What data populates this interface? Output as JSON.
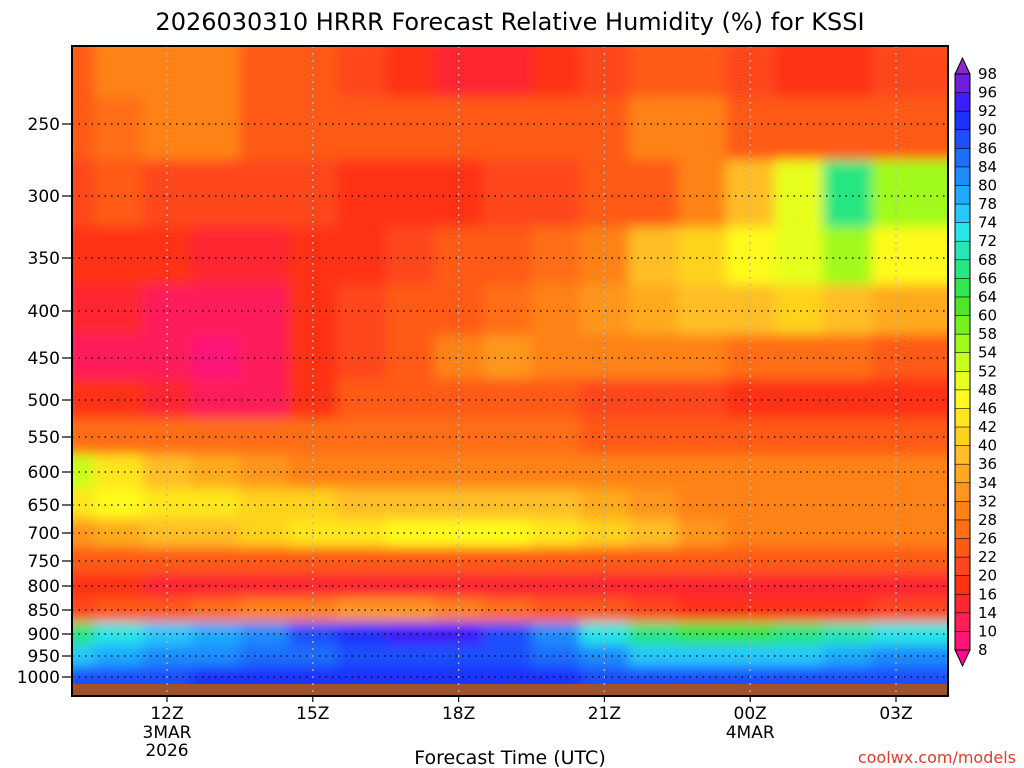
{
  "chart_data": {
    "type": "heatmap",
    "title": "2026030310 HRRR Forecast Relative Humidity (%) for KSSI",
    "xlabel": "Forecast Time (UTC)",
    "ylabel": "",
    "x_ticks": [
      {
        "label": "12Z",
        "sub1": "3MAR",
        "sub2": "2026"
      },
      {
        "label": "15Z",
        "sub1": "",
        "sub2": ""
      },
      {
        "label": "18Z",
        "sub1": "",
        "sub2": ""
      },
      {
        "label": "21Z",
        "sub1": "",
        "sub2": ""
      },
      {
        "label": "00Z",
        "sub1": "4MAR",
        "sub2": ""
      },
      {
        "label": "03Z",
        "sub1": "",
        "sub2": ""
      }
    ],
    "y_ticks": [
      "250",
      "300",
      "350",
      "400",
      "450",
      "500",
      "550",
      "600",
      "650",
      "700",
      "750",
      "800",
      "850",
      "900",
      "950",
      "1000"
    ],
    "y_values": [
      250,
      300,
      350,
      400,
      450,
      500,
      550,
      600,
      650,
      700,
      750,
      800,
      850,
      900,
      950,
      1000
    ],
    "x_hours": [
      10,
      11,
      12,
      13,
      14,
      15,
      16,
      17,
      18,
      19,
      20,
      21,
      22,
      23,
      24,
      25,
      26,
      27
    ],
    "pressure_levels": [
      200,
      250,
      300,
      350,
      400,
      450,
      500,
      550,
      600,
      650,
      700,
      750,
      800,
      850,
      900,
      950,
      1000
    ],
    "rh_grid": [
      [
        24,
        28,
        30,
        28,
        24,
        22,
        20,
        18,
        14,
        14,
        18,
        20,
        22,
        22,
        20,
        18,
        16,
        20
      ],
      [
        24,
        26,
        28,
        28,
        24,
        22,
        22,
        22,
        22,
        22,
        22,
        24,
        30,
        28,
        22,
        22,
        22,
        22
      ],
      [
        20,
        22,
        20,
        20,
        20,
        20,
        18,
        18,
        18,
        20,
        20,
        22,
        24,
        30,
        38,
        50,
        66,
        54
      ],
      [
        18,
        18,
        16,
        14,
        14,
        16,
        18,
        20,
        22,
        24,
        26,
        30,
        36,
        40,
        46,
        50,
        56,
        46
      ],
      [
        14,
        14,
        12,
        10,
        12,
        16,
        20,
        22,
        24,
        26,
        30,
        32,
        34,
        36,
        38,
        40,
        38,
        34
      ],
      [
        12,
        12,
        10,
        8,
        10,
        16,
        20,
        24,
        30,
        32,
        28,
        28,
        30,
        28,
        26,
        26,
        26,
        24
      ],
      [
        18,
        16,
        14,
        12,
        12,
        18,
        22,
        22,
        24,
        24,
        22,
        20,
        20,
        20,
        18,
        18,
        18,
        18
      ],
      [
        26,
        26,
        26,
        26,
        26,
        26,
        26,
        26,
        26,
        26,
        26,
        24,
        24,
        24,
        24,
        24,
        24,
        24
      ],
      [
        52,
        44,
        38,
        34,
        32,
        30,
        28,
        28,
        28,
        28,
        28,
        28,
        28,
        28,
        28,
        28,
        28,
        28
      ],
      [
        44,
        46,
        44,
        42,
        40,
        40,
        38,
        38,
        38,
        38,
        36,
        34,
        32,
        30,
        28,
        28,
        28,
        28
      ],
      [
        32,
        34,
        36,
        38,
        40,
        42,
        44,
        46,
        46,
        46,
        44,
        40,
        36,
        32,
        30,
        30,
        30,
        30
      ],
      [
        22,
        22,
        22,
        22,
        22,
        22,
        22,
        22,
        22,
        22,
        22,
        22,
        22,
        22,
        22,
        22,
        22,
        22
      ],
      [
        16,
        16,
        14,
        14,
        14,
        14,
        14,
        14,
        14,
        14,
        14,
        14,
        14,
        14,
        14,
        14,
        14,
        14
      ],
      [
        20,
        22,
        24,
        26,
        28,
        30,
        32,
        32,
        30,
        26,
        24,
        22,
        20,
        18,
        18,
        18,
        18,
        20
      ],
      [
        66,
        72,
        74,
        78,
        82,
        86,
        90,
        92,
        92,
        88,
        80,
        72,
        66,
        64,
        64,
        66,
        68,
        72
      ],
      [
        76,
        78,
        80,
        82,
        84,
        84,
        86,
        88,
        88,
        86,
        84,
        80,
        76,
        74,
        74,
        76,
        78,
        80
      ],
      [
        86,
        88,
        88,
        90,
        90,
        90,
        90,
        90,
        90,
        90,
        90,
        88,
        86,
        86,
        86,
        86,
        86,
        88
      ]
    ],
    "colorbar_levels": [
      8,
      10,
      14,
      16,
      20,
      22,
      26,
      28,
      32,
      34,
      36,
      40,
      42,
      46,
      48,
      52,
      54,
      58,
      60,
      64,
      66,
      68,
      72,
      74,
      78,
      80,
      84,
      86,
      90,
      92,
      96,
      98
    ],
    "colorbar_labels": [
      "98",
      "96",
      "92",
      "90",
      "86",
      "84",
      "80",
      "78",
      "74",
      "72",
      "68",
      "66",
      "64",
      "60",
      "58",
      "54",
      "52",
      "48",
      "46",
      "42",
      "40",
      "36",
      "34",
      "32",
      "28",
      "26",
      "22",
      "20",
      "16",
      "14",
      "10",
      "8"
    ],
    "colors": [
      "#ff0a8c",
      "#ff1478",
      "#ff1e5a",
      "#ff2832",
      "#ff3214",
      "#ff461e",
      "#ff5a14",
      "#ff6e14",
      "#ff8214",
      "#ff961e",
      "#ffaa1e",
      "#ffbe28",
      "#ffd21e",
      "#ffe61e",
      "#fffa1e",
      "#e6ff1e",
      "#c8ff1e",
      "#a0fa1e",
      "#78f01e",
      "#50e628",
      "#32e650",
      "#28e682",
      "#28e6b4",
      "#28e6e6",
      "#28c8fa",
      "#1eaaff",
      "#1e8cff",
      "#1e6eff",
      "#1e50ff",
      "#1e32ff",
      "#3c1eff",
      "#6e1edc",
      "#8c28c8"
    ]
  },
  "credit": "coolwx.com/models"
}
